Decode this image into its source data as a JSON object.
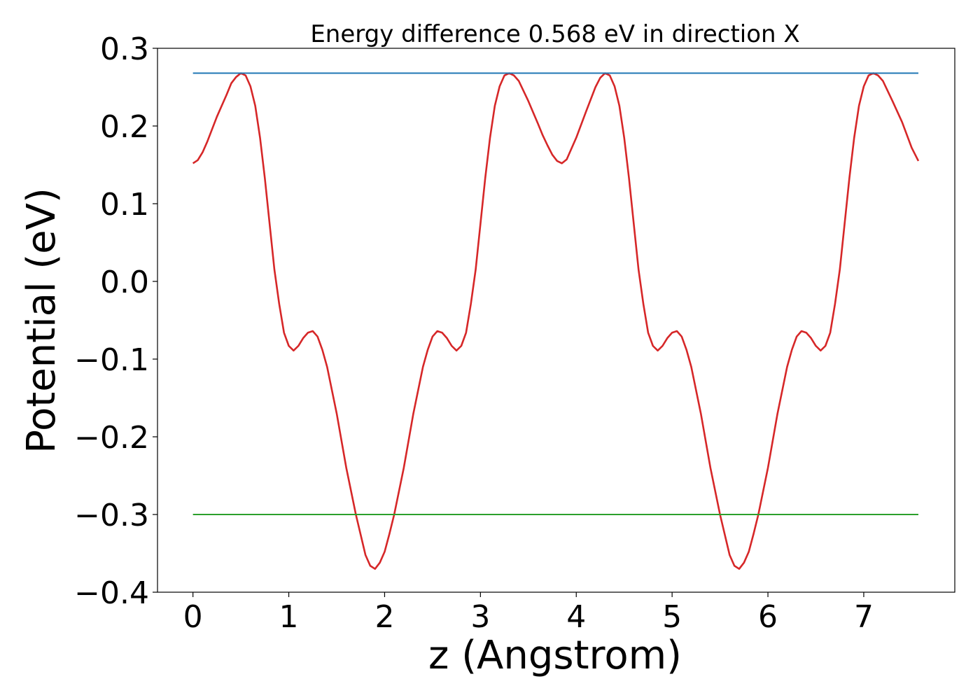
{
  "chart_data": {
    "type": "line",
    "title": "Energy difference 0.568 eV in direction X",
    "xlabel": "z (Angstrom)",
    "ylabel": "Potential (eV)",
    "xlim": [
      -0.37,
      7.95
    ],
    "ylim": [
      -0.4,
      0.3
    ],
    "grid": false,
    "legend": "none",
    "x_ticks": [
      0,
      1,
      2,
      3,
      4,
      5,
      6,
      7
    ],
    "x_tick_labels": [
      "0",
      "1",
      "2",
      "3",
      "4",
      "5",
      "6",
      "7"
    ],
    "y_ticks": [
      0.3,
      0.2,
      0.1,
      0.0,
      -0.1,
      -0.2,
      -0.3,
      -0.4
    ],
    "y_tick_labels": [
      "0.3",
      "0.2",
      "0.1",
      "0.0",
      "−0.1",
      "−0.2",
      "−0.3",
      "−0.4"
    ],
    "series": [
      {
        "color": "#d62728",
        "x": [
          0,
          0.05,
          0.1,
          0.15,
          0.2,
          0.25,
          0.3,
          0.35,
          0.4,
          0.45,
          0.5,
          0.55,
          0.6,
          0.65,
          0.7,
          0.75,
          0.8,
          0.85,
          0.9,
          0.95,
          1.0,
          1.05,
          1.1,
          1.15,
          1.2,
          1.25,
          1.3,
          1.35,
          1.4,
          1.5,
          1.6,
          1.7,
          1.8,
          1.85,
          1.9,
          1.95,
          2.0,
          2.05,
          2.1,
          2.2,
          2.3,
          2.4,
          2.45,
          2.5,
          2.55,
          2.6,
          2.65,
          2.7,
          2.75,
          2.8,
          2.85,
          2.9,
          2.95,
          3.0,
          3.05,
          3.1,
          3.15,
          3.2,
          3.25,
          3.3,
          3.35,
          3.4,
          3.5,
          3.6,
          3.65,
          3.7,
          3.75,
          3.8,
          3.85,
          3.9,
          4.0,
          4.1,
          4.2,
          4.25,
          4.3,
          4.35,
          4.4,
          4.45,
          4.5,
          4.55,
          4.6,
          4.65,
          4.7,
          4.75,
          4.8,
          4.85,
          4.9,
          4.95,
          5.0,
          5.05,
          5.1,
          5.15,
          5.2,
          5.3,
          5.4,
          5.5,
          5.6,
          5.65,
          5.7,
          5.75,
          5.8,
          5.85,
          5.9,
          6.0,
          6.1,
          6.2,
          6.25,
          6.3,
          6.35,
          6.4,
          6.45,
          6.5,
          6.55,
          6.6,
          6.65,
          6.7,
          6.75,
          6.8,
          6.85,
          6.9,
          6.95,
          7.0,
          7.05,
          7.1,
          7.15,
          7.2,
          7.3,
          7.4,
          7.5,
          7.57
        ],
        "values": [
          0.152,
          0.156,
          0.166,
          0.18,
          0.196,
          0.212,
          0.226,
          0.24,
          0.255,
          0.263,
          0.268,
          0.265,
          0.251,
          0.226,
          0.185,
          0.133,
          0.074,
          0.015,
          -0.029,
          -0.066,
          -0.083,
          -0.089,
          -0.083,
          -0.073,
          -0.066,
          -0.064,
          -0.071,
          -0.088,
          -0.11,
          -0.17,
          -0.24,
          -0.3,
          -0.352,
          -0.366,
          -0.37,
          -0.362,
          -0.348,
          -0.325,
          -0.3,
          -0.24,
          -0.17,
          -0.11,
          -0.088,
          -0.071,
          -0.064,
          -0.066,
          -0.073,
          -0.083,
          -0.089,
          -0.083,
          -0.066,
          -0.029,
          0.015,
          0.074,
          0.133,
          0.185,
          0.226,
          0.251,
          0.265,
          0.268,
          0.265,
          0.258,
          0.232,
          0.203,
          0.188,
          0.175,
          0.163,
          0.155,
          0.152,
          0.157,
          0.185,
          0.218,
          0.25,
          0.262,
          0.268,
          0.265,
          0.251,
          0.226,
          0.185,
          0.133,
          0.074,
          0.015,
          -0.029,
          -0.066,
          -0.083,
          -0.089,
          -0.083,
          -0.073,
          -0.066,
          -0.064,
          -0.071,
          -0.088,
          -0.11,
          -0.17,
          -0.24,
          -0.3,
          -0.352,
          -0.366,
          -0.37,
          -0.362,
          -0.348,
          -0.325,
          -0.3,
          -0.24,
          -0.17,
          -0.11,
          -0.088,
          -0.071,
          -0.064,
          -0.066,
          -0.073,
          -0.083,
          -0.089,
          -0.083,
          -0.066,
          -0.029,
          0.015,
          0.074,
          0.133,
          0.185,
          0.226,
          0.251,
          0.265,
          0.268,
          0.265,
          0.258,
          0.232,
          0.205,
          0.172,
          0.155
        ]
      },
      {
        "color": "#1f77b4",
        "x": [
          0,
          7.57
        ],
        "values": [
          0.268,
          0.268
        ]
      },
      {
        "color": "#2ca02c",
        "x": [
          0,
          7.57
        ],
        "values": [
          -0.3,
          -0.3
        ]
      }
    ]
  }
}
